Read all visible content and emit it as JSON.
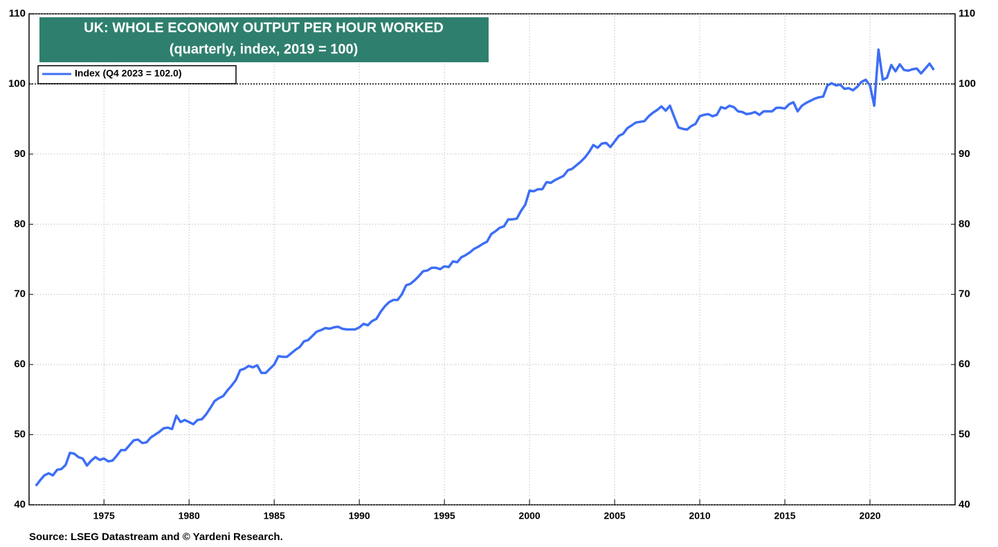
{
  "chart_data": {
    "type": "line",
    "title": "UK: WHOLE ECONOMY OUTPUT PER HOUR WORKED",
    "subtitle": "(quarterly, index, 2019 = 100)",
    "source": "Source: LSEG Datastream and © Yardeni Research.",
    "x": [
      1971,
      1971.25,
      1971.5,
      1971.75,
      1972,
      1972.25,
      1972.5,
      1972.75,
      1973,
      1973.25,
      1973.5,
      1973.75,
      1974,
      1974.25,
      1974.5,
      1974.75,
      1975,
      1975.25,
      1975.5,
      1975.75,
      1976,
      1976.25,
      1976.5,
      1976.75,
      1977,
      1977.25,
      1977.5,
      1977.75,
      1978,
      1978.25,
      1978.5,
      1978.75,
      1979,
      1979.25,
      1979.5,
      1979.75,
      1980,
      1980.25,
      1980.5,
      1980.75,
      1981,
      1981.25,
      1981.5,
      1981.75,
      1982,
      1982.25,
      1982.5,
      1982.75,
      1983,
      1983.25,
      1983.5,
      1983.75,
      1984,
      1984.25,
      1984.5,
      1984.75,
      1985,
      1985.25,
      1985.5,
      1985.75,
      1986,
      1986.25,
      1986.5,
      1986.75,
      1987,
      1987.25,
      1987.5,
      1987.75,
      1988,
      1988.25,
      1988.5,
      1988.75,
      1989,
      1989.25,
      1989.5,
      1989.75,
      1990,
      1990.25,
      1990.5,
      1990.75,
      1991,
      1991.25,
      1991.5,
      1991.75,
      1992,
      1992.25,
      1992.5,
      1992.75,
      1993,
      1993.25,
      1993.5,
      1993.75,
      1994,
      1994.25,
      1994.5,
      1994.75,
      1995,
      1995.25,
      1995.5,
      1995.75,
      1996,
      1996.25,
      1996.5,
      1996.75,
      1997,
      1997.25,
      1997.5,
      1997.75,
      1998,
      1998.25,
      1998.5,
      1998.75,
      1999,
      1999.25,
      1999.5,
      1999.75,
      2000,
      2000.25,
      2000.5,
      2000.75,
      2001,
      2001.25,
      2001.5,
      2001.75,
      2002,
      2002.25,
      2002.5,
      2002.75,
      2003,
      2003.25,
      2003.5,
      2003.75,
      2004,
      2004.25,
      2004.5,
      2004.75,
      2005,
      2005.25,
      2005.5,
      2005.75,
      2006,
      2006.25,
      2006.5,
      2006.75,
      2007,
      2007.25,
      2007.5,
      2007.75,
      2008,
      2008.25,
      2008.5,
      2008.75,
      2009,
      2009.25,
      2009.5,
      2009.75,
      2010,
      2010.25,
      2010.5,
      2010.75,
      2011,
      2011.25,
      2011.5,
      2011.75,
      2012,
      2012.25,
      2012.5,
      2012.75,
      2013,
      2013.25,
      2013.5,
      2013.75,
      2014,
      2014.25,
      2014.5,
      2014.75,
      2015,
      2015.25,
      2015.5,
      2015.75,
      2016,
      2016.25,
      2016.5,
      2016.75,
      2017,
      2017.25,
      2017.5,
      2017.75,
      2018,
      2018.25,
      2018.5,
      2018.75,
      2019,
      2019.25,
      2019.5,
      2019.75,
      2020,
      2020.25,
      2020.5,
      2020.75,
      2021,
      2021.25,
      2021.5,
      2021.75,
      2022,
      2022.25,
      2022.5,
      2022.75,
      2023,
      2023.25,
      2023.5,
      2023.75
    ],
    "series": [
      {
        "name": "Index (Q4 2023 = 102.0)",
        "color": "#3d6ef5",
        "values": [
          42.7,
          43.5,
          44.2,
          44.5,
          44.2,
          45.0,
          45.1,
          45.7,
          47.4,
          47.3,
          46.8,
          46.6,
          45.6,
          46.3,
          46.8,
          46.4,
          46.6,
          46.2,
          46.3,
          47.0,
          47.8,
          47.8,
          48.5,
          49.2,
          49.3,
          48.8,
          48.9,
          49.6,
          50.0,
          50.4,
          50.9,
          51.0,
          50.8,
          52.7,
          51.8,
          52.1,
          51.8,
          51.5,
          52.1,
          52.2,
          52.9,
          53.8,
          54.8,
          55.2,
          55.5,
          56.3,
          57.0,
          57.8,
          59.2,
          59.4,
          59.8,
          59.6,
          59.9,
          58.8,
          58.8,
          59.4,
          60.0,
          61.2,
          61.1,
          61.1,
          61.6,
          62.1,
          62.5,
          63.3,
          63.5,
          64.1,
          64.7,
          64.9,
          65.2,
          65.1,
          65.3,
          65.4,
          65.1,
          65.0,
          65.0,
          65.0,
          65.3,
          65.8,
          65.6,
          66.2,
          66.5,
          67.5,
          68.3,
          68.9,
          69.2,
          69.2,
          70.0,
          71.3,
          71.5,
          72.0,
          72.6,
          73.3,
          73.4,
          73.8,
          73.8,
          73.6,
          74.0,
          73.9,
          74.7,
          74.6,
          75.3,
          75.6,
          76.0,
          76.5,
          76.8,
          77.2,
          77.5,
          78.6,
          79.0,
          79.5,
          79.7,
          80.7,
          80.7,
          80.8,
          81.9,
          82.8,
          84.8,
          84.7,
          85.0,
          85.0,
          86.0,
          85.9,
          86.3,
          86.6,
          86.9,
          87.7,
          87.9,
          88.4,
          88.9,
          89.5,
          90.3,
          91.3,
          90.9,
          91.5,
          91.6,
          91.0,
          91.8,
          92.6,
          92.9,
          93.7,
          94.1,
          94.5,
          94.6,
          94.7,
          95.4,
          95.9,
          96.3,
          96.8,
          96.2,
          96.9,
          95.3,
          93.8,
          93.6,
          93.5,
          94.0,
          94.3,
          95.4,
          95.6,
          95.7,
          95.4,
          95.6,
          96.7,
          96.5,
          96.9,
          96.7,
          96.1,
          96.0,
          95.7,
          95.8,
          96.0,
          95.6,
          96.1,
          96.1,
          96.1,
          96.6,
          96.6,
          96.5,
          97.1,
          97.4,
          96.1,
          96.9,
          97.3,
          97.6,
          97.9,
          98.1,
          98.2,
          99.8,
          100.1,
          99.8,
          99.9,
          99.3,
          99.4,
          99.1,
          99.6,
          100.3,
          100.6,
          99.8,
          96.9,
          104.9,
          100.6,
          100.9,
          102.7,
          101.8,
          102.8,
          102.0,
          101.9,
          102.1,
          102.2,
          101.5,
          102.2,
          102.9,
          102.0
        ]
      }
    ],
    "xlim": [
      1970.6,
      2025.0
    ],
    "xticks": [
      1975,
      1980,
      1985,
      1990,
      1995,
      2000,
      2005,
      2010,
      2015,
      2020
    ],
    "ylim": [
      40,
      110
    ],
    "yticks": [
      40,
      50,
      60,
      70,
      80,
      90,
      100,
      110
    ],
    "reference_line": 100,
    "right_axis": true,
    "grid": true,
    "legend": "upper left"
  }
}
